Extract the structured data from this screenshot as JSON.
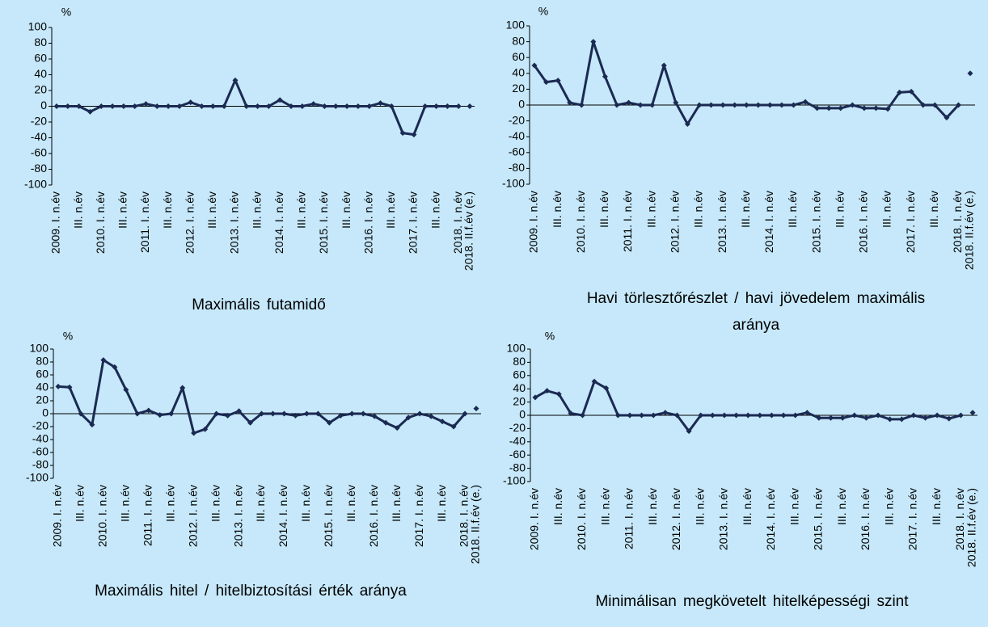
{
  "chart_data": [
    {
      "type": "line",
      "title": "Maximális futamidő",
      "y_unit": "%",
      "categories": [
        "2009. I. n.év",
        null,
        "III. n.év",
        null,
        "2010. I. n.év",
        null,
        "III. n.év",
        null,
        "2011. I. n.év",
        null,
        "III. n.év",
        null,
        "2012. I. n.év",
        null,
        "III. n.év",
        null,
        "2013. I. n.év",
        null,
        "III. n.év",
        null,
        "2014. I. n.év",
        null,
        "III. n.év",
        null,
        "2015. I. n.év",
        null,
        "III. n.év",
        null,
        "2016. I. n.év",
        null,
        "III. n.év",
        null,
        "2017. I. n.év",
        null,
        "III. n.év",
        null,
        "2018. I. n.év",
        "2018. II.f.év (e.)"
      ],
      "series": [
        {
          "color": "#1b2a52",
          "values": [
            0,
            0,
            0,
            -7,
            0,
            0,
            0,
            0,
            3,
            0,
            0,
            0,
            5,
            0,
            0,
            0,
            33,
            0,
            0,
            0,
            8,
            0,
            0,
            3,
            0,
            0,
            0,
            0,
            0,
            4,
            0,
            -34,
            -36,
            0,
            0,
            0,
            0,
            null
          ]
        },
        {
          "color": "#1b2a52",
          "line": false,
          "values": [
            null,
            null,
            null,
            null,
            null,
            null,
            null,
            null,
            null,
            null,
            null,
            null,
            null,
            null,
            null,
            null,
            null,
            null,
            null,
            null,
            null,
            null,
            null,
            null,
            null,
            null,
            null,
            null,
            null,
            null,
            null,
            null,
            null,
            null,
            null,
            null,
            null,
            0
          ]
        }
      ],
      "ylim": [
        -100,
        100
      ],
      "yticks": [
        -100,
        -80,
        -60,
        -40,
        -20,
        0,
        20,
        40,
        60,
        80,
        100
      ]
    },
    {
      "type": "line",
      "title": "Havi törlesztőrészlet / havi jövedelem maximális aránya",
      "y_unit": "%",
      "categories": [
        "2009. I. n.év",
        null,
        "III. n.év",
        null,
        "2010. I. n.év",
        null,
        "III. n.év",
        null,
        "2011. I. n.év",
        null,
        "III. n.év",
        null,
        "2012. I. n.év",
        null,
        "III. n.év",
        null,
        "2013. I. n.év",
        null,
        "III. n.év",
        null,
        "2014. I. n.év",
        null,
        "III. n.év",
        null,
        "2015. I. n.év",
        null,
        "III. n.év",
        null,
        "2016. I. n.év",
        null,
        "III. n.év",
        null,
        "2017. I. n.év",
        null,
        "III. n.év",
        null,
        "2018. I. n.év",
        "2018. II.f.év (e.)"
      ],
      "series": [
        {
          "color": "#1b2a52",
          "values": [
            50,
            29,
            31,
            3,
            0,
            80,
            36,
            0,
            3,
            0,
            0,
            50,
            3,
            -24,
            0,
            0,
            0,
            0,
            0,
            0,
            0,
            0,
            0,
            4,
            -4,
            -4,
            -4,
            0,
            -4,
            -4,
            -5,
            16,
            17,
            0,
            0,
            -16,
            0,
            null
          ]
        },
        {
          "color": "#1b2a52",
          "line": false,
          "values": [
            null,
            null,
            null,
            null,
            null,
            null,
            null,
            null,
            null,
            null,
            null,
            null,
            null,
            null,
            null,
            null,
            null,
            null,
            null,
            null,
            null,
            null,
            null,
            null,
            null,
            null,
            null,
            null,
            null,
            null,
            null,
            null,
            null,
            null,
            null,
            null,
            null,
            40
          ]
        }
      ],
      "ylim": [
        -100,
        100
      ],
      "yticks": [
        -100,
        -80,
        -60,
        -40,
        -20,
        0,
        20,
        40,
        60,
        80,
        100
      ]
    },
    {
      "type": "line",
      "title": "Maximális hitel / hitelbiztosítási érték aránya",
      "y_unit": "%",
      "categories": [
        "2009. I. n.év",
        null,
        "III. n.év",
        null,
        "2010. I. n.év",
        null,
        "III. n.év",
        null,
        "2011. I. n.év",
        null,
        "III. n.év",
        null,
        "2012. I. n.év",
        null,
        "III. n.év",
        null,
        "2013. I. n.év",
        null,
        "III. n.év",
        null,
        "2014. I. n.év",
        null,
        "III. n.év",
        null,
        "2015. I. n.év",
        null,
        "III. n.év",
        null,
        "2016. I. n.év",
        null,
        "III. n.év",
        null,
        "2017. I. n.év",
        null,
        "III. n.év",
        null,
        "2018. I. n.év",
        "2018. II.f.év (e.)"
      ],
      "series": [
        {
          "color": "#1b2a52",
          "values": [
            42,
            41,
            0,
            -17,
            83,
            72,
            37,
            0,
            5,
            -2,
            0,
            40,
            -30,
            -24,
            0,
            -3,
            4,
            -14,
            0,
            0,
            0,
            -3,
            0,
            0,
            -14,
            -3,
            0,
            0,
            -4,
            -14,
            -22,
            -6,
            0,
            -4,
            -12,
            -20,
            0,
            null
          ]
        },
        {
          "color": "#1b2a52",
          "line": false,
          "values": [
            null,
            null,
            null,
            null,
            null,
            null,
            null,
            null,
            null,
            null,
            null,
            null,
            null,
            null,
            null,
            null,
            null,
            null,
            null,
            null,
            null,
            null,
            null,
            null,
            null,
            null,
            null,
            null,
            null,
            null,
            null,
            null,
            null,
            null,
            null,
            null,
            null,
            8
          ]
        }
      ],
      "ylim": [
        -100,
        100
      ],
      "yticks": [
        -100,
        -80,
        -60,
        -40,
        -20,
        0,
        20,
        40,
        60,
        80,
        100
      ]
    },
    {
      "type": "line",
      "title": "Minimálisan megkövetelt hitelképességi szint",
      "y_unit": "%",
      "categories": [
        "2009. I. n.év",
        null,
        "III. n.év",
        null,
        "2010. I. n.év",
        null,
        "III. n.év",
        null,
        "2011. I. n.év",
        null,
        "III. n.év",
        null,
        "2012. I. n.év",
        null,
        "III. n.év",
        null,
        "2013. I. n.év",
        null,
        "III. n.év",
        null,
        "2014. I. n.év",
        null,
        "III. n.év",
        null,
        "2015. I. n.év",
        null,
        "III. n.év",
        null,
        "2016. I. n.év",
        null,
        "III. n.év",
        null,
        "2017. I. n.év",
        null,
        "III. n.év",
        null,
        "2018. I. n.év",
        "2018. II.f.év (e.)"
      ],
      "series": [
        {
          "color": "#1b2a52",
          "values": [
            27,
            37,
            32,
            3,
            0,
            51,
            41,
            0,
            0,
            0,
            0,
            4,
            0,
            -24,
            0,
            0,
            0,
            0,
            0,
            0,
            0,
            0,
            0,
            4,
            -4,
            -4,
            -4,
            0,
            -4,
            0,
            -6,
            -6,
            0,
            -4,
            0,
            -5,
            0,
            null
          ]
        },
        {
          "color": "#1b2a52",
          "line": false,
          "values": [
            null,
            null,
            null,
            null,
            null,
            null,
            null,
            null,
            null,
            null,
            null,
            null,
            null,
            null,
            null,
            null,
            null,
            null,
            null,
            null,
            null,
            null,
            null,
            null,
            null,
            null,
            null,
            null,
            null,
            null,
            null,
            null,
            null,
            null,
            null,
            null,
            null,
            4
          ]
        }
      ],
      "ylim": [
        -100,
        100
      ],
      "yticks": [
        -100,
        -80,
        -60,
        -40,
        -20,
        0,
        20,
        40,
        60,
        80,
        100
      ]
    }
  ]
}
